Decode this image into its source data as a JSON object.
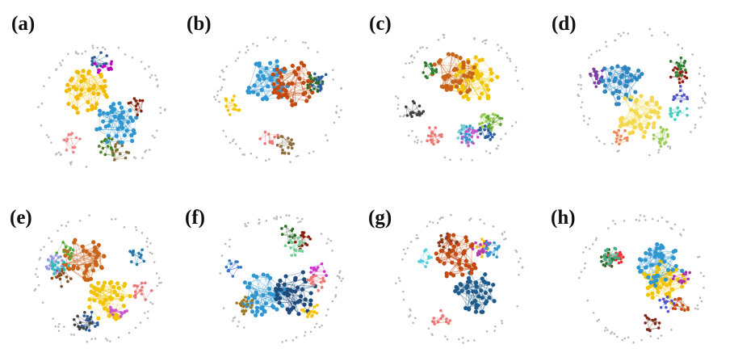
{
  "panels": [
    {
      "label": "(a)",
      "colors": [
        "#f2bb00",
        "#2f96d0",
        "#8b2010",
        "#2a5d9a",
        "#4b7f2a",
        "#8a6d3b",
        "#e88",
        "#b0b"
      ]
    },
    {
      "label": "(b)",
      "colors": [
        "#2f96d0",
        "#c24a12",
        "#f2c300",
        "#2e6b2a",
        "#2a5d9a",
        "#e77",
        "#8a6d3b"
      ]
    },
    {
      "label": "(c)",
      "colors": [
        "#f2c300",
        "#c8641a",
        "#2a5d9a",
        "#2f96d0",
        "#2e7d32",
        "#7cc",
        "#9c5",
        "#c5c",
        "#e77",
        "#6a3",
        "#444"
      ]
    },
    {
      "label": "(d)",
      "colors": [
        "#2f86c0",
        "#f2d84a",
        "#8b2010",
        "#7a3fa0",
        "#55c",
        "#2e7d32",
        "#e85",
        "#4cb",
        "#9c5"
      ]
    },
    {
      "label": "(e)",
      "colors": [
        "#c8641a",
        "#f2c300",
        "#2a5d9a",
        "#8a4a1a",
        "#c5c",
        "#5a3",
        "#99d",
        "#27a",
        "#e77",
        "#3bb",
        "#444"
      ]
    },
    {
      "label": "(f)",
      "colors": [
        "#2f96d0",
        "#1e4a7a",
        "#f2c300",
        "#2e6b2a",
        "#8b2010",
        "#9a7a20",
        "#c3c",
        "#7c9",
        "#e77",
        "#37c"
      ]
    },
    {
      "label": "(g)",
      "colors": [
        "#1e5a8a",
        "#c24a12",
        "#f2c300",
        "#b33bb3",
        "#2f96d0",
        "#8b3a1a",
        "#5cd",
        "#e77"
      ]
    },
    {
      "label": "(h)",
      "colors": [
        "#f2c300",
        "#2f96d0",
        "#7a2a1a",
        "#2e6b2a",
        "#c24a12",
        "#a3a",
        "#55c",
        "#e33",
        "#4a8"
      ]
    }
  ]
}
